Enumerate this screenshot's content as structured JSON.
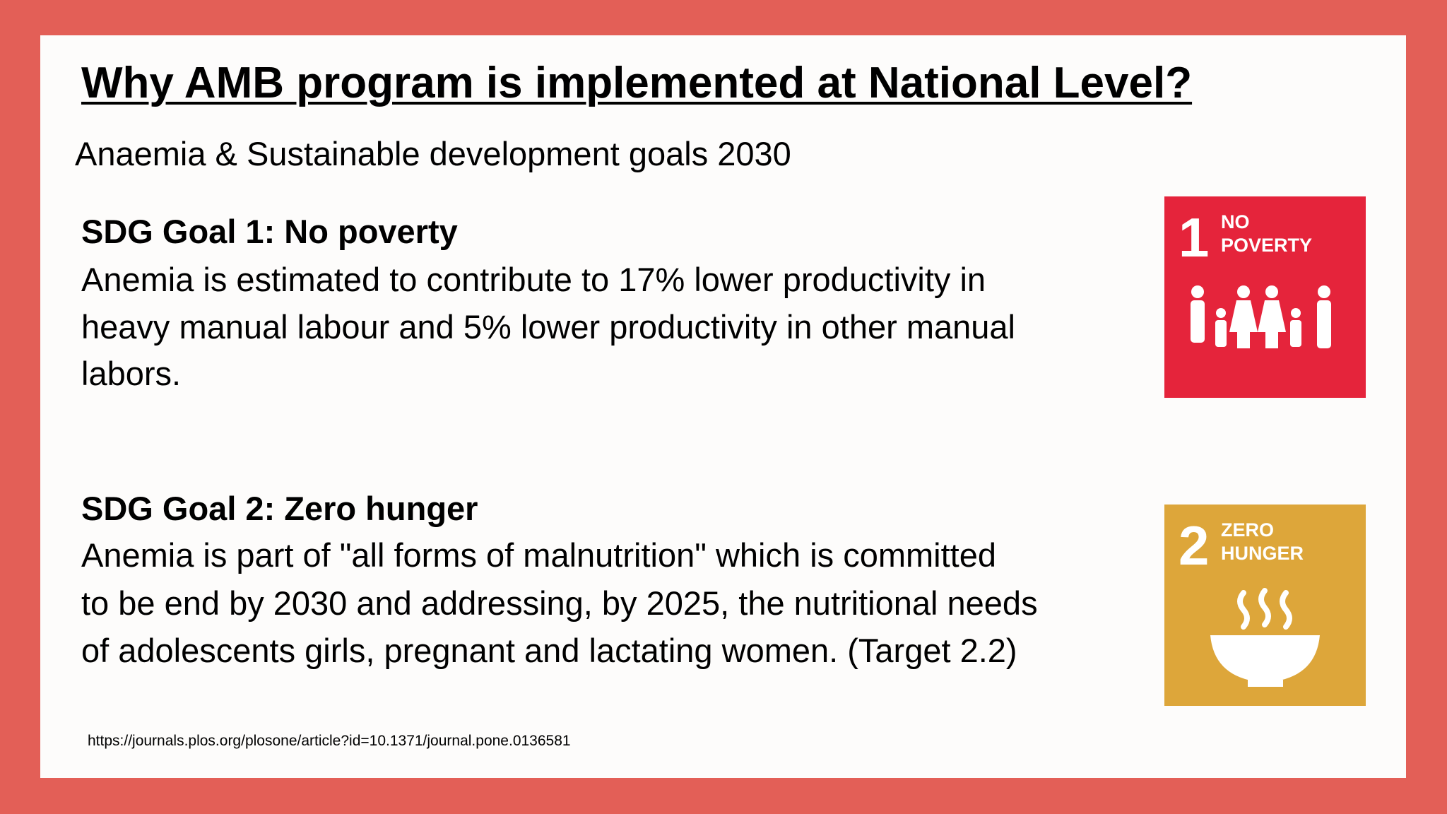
{
  "title": "Why AMB program is implemented at National Level?",
  "subtitle": "Anaemia & Sustainable development goals 2030",
  "sections": [
    {
      "heading": "SDG Goal 1: No poverty",
      "body": [
        "Anemia is estimated to contribute to 17% lower productivity in",
        "heavy manual labour and 5% lower productivity in other manual",
        "labors."
      ],
      "icon": {
        "number": "1",
        "label": [
          "NO",
          "POVERTY"
        ]
      }
    },
    {
      "heading": "SDG Goal 2: Zero hunger",
      "body": [
        "Anemia is part of \"all forms of malnutrition\" which is committed",
        "to be end by 2030 and addressing, by 2025, the nutritional needs",
        "of adolescents girls, pregnant and lactating women. (Target 2.2)"
      ],
      "icon": {
        "number": "2",
        "label": [
          "ZERO",
          "HUNGER"
        ]
      }
    }
  ],
  "source": "https://journals.plos.org/plosone/article?id=10.1371/journal.pone.0136581"
}
